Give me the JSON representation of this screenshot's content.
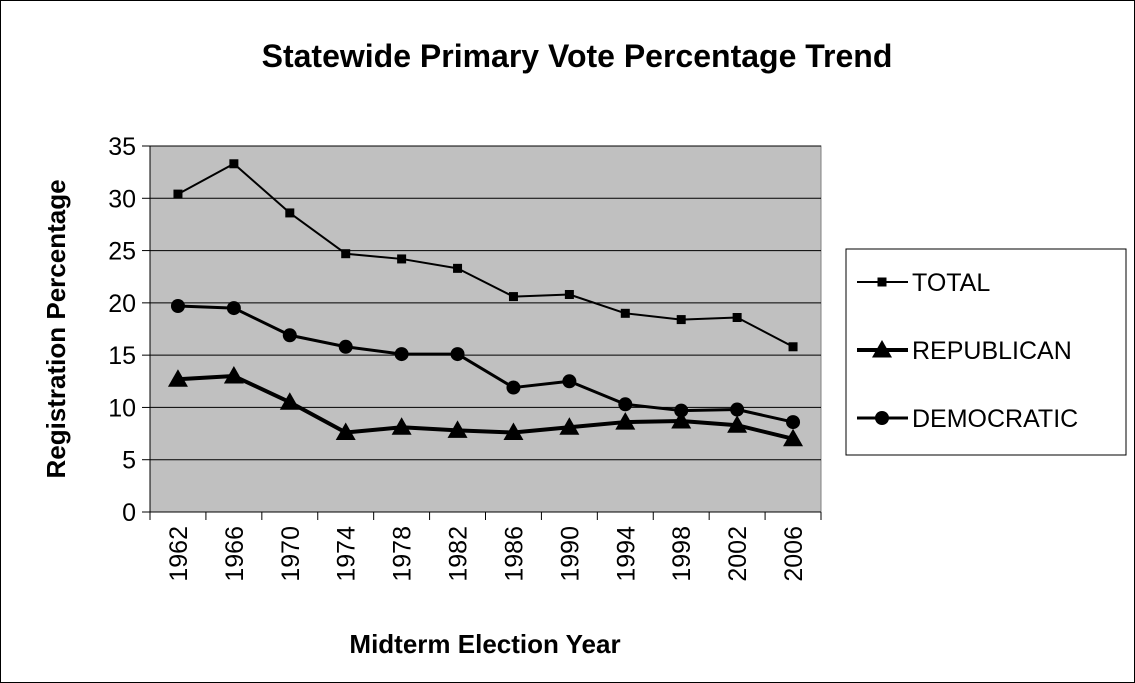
{
  "chart_data": {
    "type": "line",
    "title": "Statewide Primary Vote Percentage Trend",
    "xlabel": "Midterm Election Year",
    "ylabel": "Registration Percentage",
    "categories": [
      "1962",
      "1966",
      "1970",
      "1974",
      "1978",
      "1982",
      "1986",
      "1990",
      "1994",
      "1998",
      "2002",
      "2006"
    ],
    "ylim": [
      0,
      35
    ],
    "yticks": [
      "0",
      "5",
      "10",
      "15",
      "20",
      "25",
      "30",
      "35"
    ],
    "grid": true,
    "legend_position": "right",
    "plot_background": "#c0c0c0",
    "series": [
      {
        "name": "TOTAL",
        "marker": "square",
        "line_width": "thin",
        "values": [
          30.4,
          33.3,
          28.6,
          24.7,
          24.2,
          23.3,
          20.6,
          20.8,
          19.0,
          18.4,
          18.6,
          15.8
        ]
      },
      {
        "name": "REPUBLICAN",
        "marker": "triangle",
        "line_width": "thick",
        "values": [
          12.7,
          13.0,
          10.5,
          7.6,
          8.1,
          7.8,
          7.6,
          8.1,
          8.6,
          8.7,
          8.3,
          7.0
        ]
      },
      {
        "name": "DEMOCRATIC",
        "marker": "circle",
        "line_width": "medium",
        "values": [
          19.7,
          19.5,
          16.9,
          15.8,
          15.1,
          15.1,
          11.9,
          12.5,
          10.3,
          9.7,
          9.8,
          8.6
        ]
      }
    ]
  }
}
